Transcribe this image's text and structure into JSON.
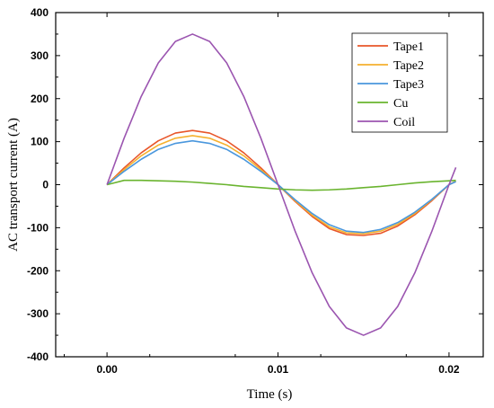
{
  "chart_data": {
    "type": "line",
    "title": "",
    "xlabel": "Time (s)",
    "ylabel": "AC transport current (A)",
    "xlim": [
      -0.003,
      0.022
    ],
    "ylim": [
      -400,
      400
    ],
    "xticks": [
      "0.00",
      "0.01",
      "0.02"
    ],
    "yticks": [
      "400",
      "300",
      "200",
      "100",
      "0",
      "-100",
      "-200",
      "-300",
      "-400"
    ],
    "legend_position": "top-right",
    "grid": false,
    "x": [
      0.0,
      0.001,
      0.002,
      0.003,
      0.004,
      0.005,
      0.006,
      0.007,
      0.008,
      0.009,
      0.01,
      0.011,
      0.012,
      0.013,
      0.014,
      0.015,
      0.016,
      0.017,
      0.018,
      0.019,
      0.02,
      0.0204
    ],
    "series": [
      {
        "name": "Tape1",
        "color": "#e8562a",
        "values": [
          0,
          39,
          74,
          102,
          120,
          126,
          120,
          102,
          74,
          39,
          0,
          -39,
          -74,
          -102,
          -116,
          -118,
          -113,
          -96,
          -70,
          -37,
          0,
          8
        ]
      },
      {
        "name": "Tape2",
        "color": "#f5b12f",
        "values": [
          0,
          35,
          67,
          92,
          108,
          114,
          108,
          92,
          67,
          35,
          0,
          -37,
          -71,
          -98,
          -112,
          -114,
          -108,
          -92,
          -67,
          -35,
          0,
          8
        ]
      },
      {
        "name": "Tape3",
        "color": "#4a97dd",
        "values": [
          0,
          31,
          59,
          82,
          96,
          102,
          96,
          82,
          59,
          31,
          0,
          -35,
          -67,
          -93,
          -108,
          -111,
          -104,
          -88,
          -64,
          -34,
          0,
          7
        ]
      },
      {
        "name": "Cu",
        "color": "#6ab42f",
        "values": [
          0,
          10,
          10,
          9,
          8,
          6,
          3,
          0,
          -4,
          -7,
          -10,
          -12,
          -13,
          -12,
          -10,
          -7,
          -4,
          0,
          4,
          7,
          9,
          10
        ]
      },
      {
        "name": "Coil",
        "color": "#9b55b0",
        "values": [
          0,
          108,
          205,
          283,
          333,
          350,
          333,
          283,
          205,
          108,
          0,
          -108,
          -205,
          -283,
          -333,
          -350,
          -333,
          -283,
          -205,
          -108,
          0,
          40
        ]
      }
    ]
  }
}
